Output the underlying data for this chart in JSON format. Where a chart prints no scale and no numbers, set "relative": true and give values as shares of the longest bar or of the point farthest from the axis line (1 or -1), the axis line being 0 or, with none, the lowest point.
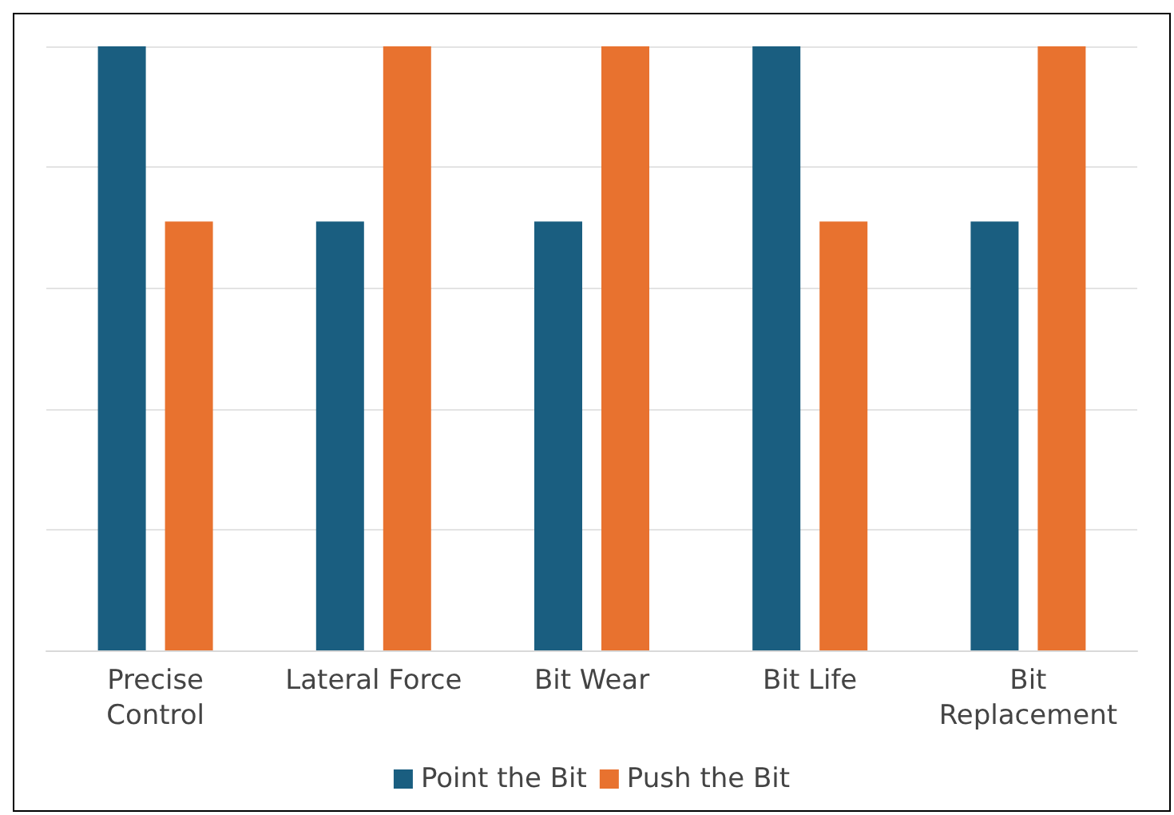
{
  "chart_data": {
    "type": "bar",
    "relative": true,
    "categories": [
      "Precise Control",
      "Lateral Force",
      "Bit Wear",
      "Bit Life",
      "Bit Replacement"
    ],
    "series": [
      {
        "name": "Point the Bit",
        "color": "#1a5e80",
        "values": [
          1,
          0.71,
          0.71,
          1,
          0.71
        ]
      },
      {
        "name": "Push the Bit",
        "color": "#e8722f",
        "values": [
          0.71,
          1,
          1,
          0.71,
          1
        ]
      }
    ],
    "grid": true,
    "legend": "bottom"
  }
}
